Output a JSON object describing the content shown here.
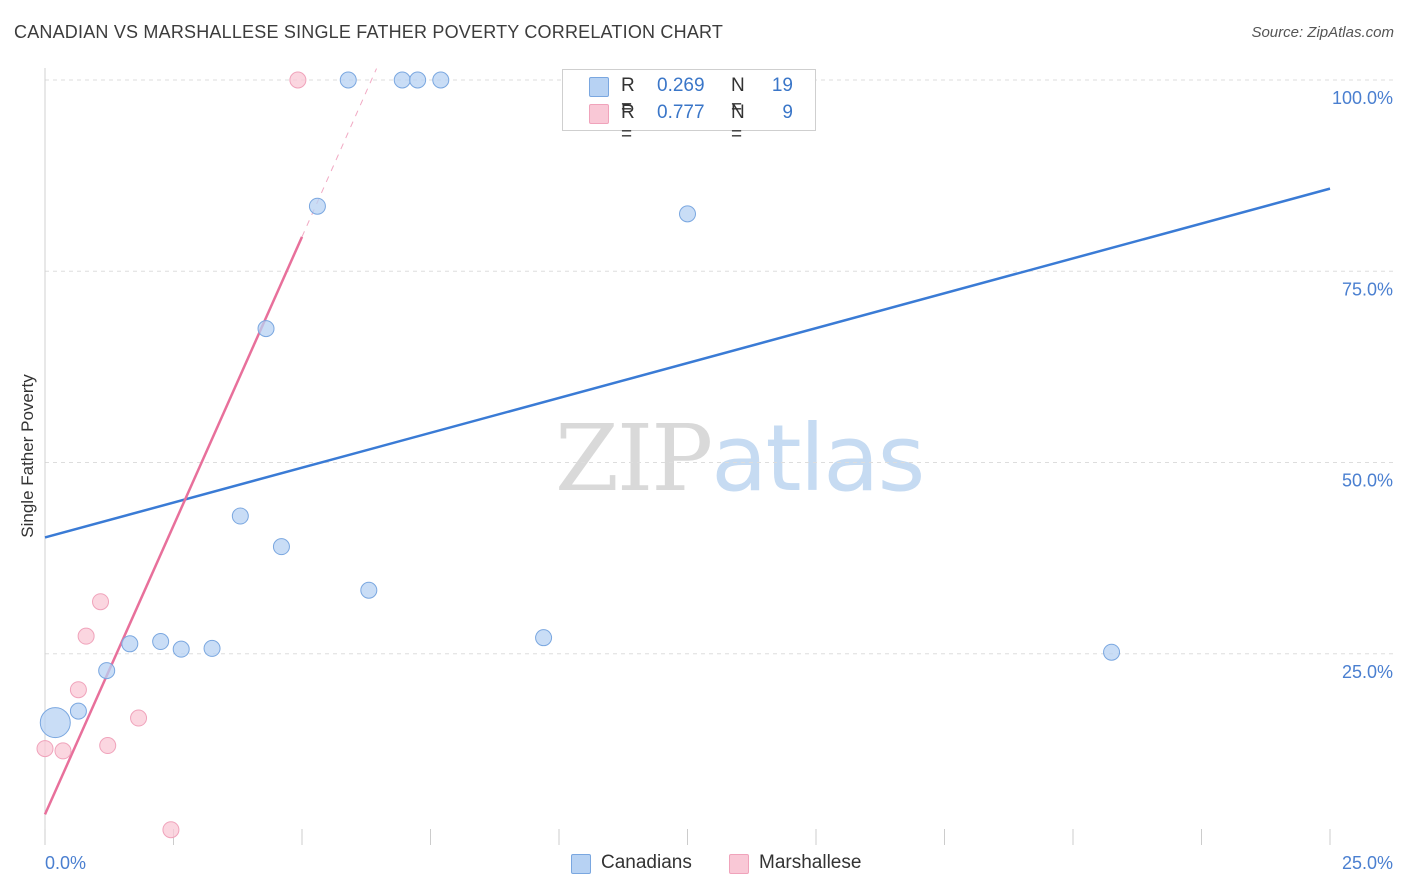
{
  "header": {
    "title": "CANADIAN VS MARSHALLESE SINGLE FATHER POVERTY CORRELATION CHART",
    "source": "Source: ZipAtlas.com"
  },
  "watermark": {
    "zip": "ZIP",
    "atlas": "atlas"
  },
  "legend": {
    "canadians": {
      "r_label": "R =",
      "r_value": "0.269",
      "n_label": "N =",
      "n_value": "19"
    },
    "marshallese": {
      "r_label": "R =",
      "r_value": "0.777",
      "n_label": "N =",
      "n_value": "9"
    }
  },
  "bottom_legend": {
    "canadians": "Canadians",
    "marshallese": "Marshallese"
  },
  "colors": {
    "canadians_fill": "#b7d2f3",
    "canadians_stroke": "#7aa7e0",
    "canadians_line": "#3a7bd5",
    "marshallese_fill": "#f9c8d6",
    "marshallese_stroke": "#f0a3bb",
    "marshallese_line": "#e8709b",
    "tick_label": "#4a7fd0",
    "grid": "#dddddd"
  },
  "chart_data": {
    "type": "scatter",
    "title": "CANADIAN VS MARSHALLESE SINGLE FATHER POVERTY CORRELATION CHART",
    "xlabel": "",
    "ylabel": "Single Father Poverty",
    "xlim": [
      0,
      25
    ],
    "ylim": [
      0,
      100
    ],
    "x_tick_labels": [
      "0.0%",
      "25.0%"
    ],
    "y_ticks": [
      25,
      50,
      75,
      100
    ],
    "y_tick_labels": [
      "25.0%",
      "50.0%",
      "75.0%",
      "100.0%"
    ],
    "series": [
      {
        "name": "Canadians",
        "points": [
          {
            "x": 0.2,
            "y": 16.0,
            "size": 4
          },
          {
            "x": 0.65,
            "y": 17.5,
            "size": 1
          },
          {
            "x": 1.2,
            "y": 22.8,
            "size": 1
          },
          {
            "x": 1.65,
            "y": 26.3,
            "size": 1
          },
          {
            "x": 2.25,
            "y": 26.6,
            "size": 1
          },
          {
            "x": 2.65,
            "y": 25.6,
            "size": 1
          },
          {
            "x": 3.25,
            "y": 25.7,
            "size": 1
          },
          {
            "x": 3.8,
            "y": 43.0,
            "size": 1
          },
          {
            "x": 4.3,
            "y": 67.5,
            "size": 1
          },
          {
            "x": 4.6,
            "y": 39.0,
            "size": 1
          },
          {
            "x": 5.3,
            "y": 83.5,
            "size": 1
          },
          {
            "x": 5.9,
            "y": 100.0,
            "size": 1
          },
          {
            "x": 6.3,
            "y": 33.3,
            "size": 1
          },
          {
            "x": 6.95,
            "y": 100.0,
            "size": 1
          },
          {
            "x": 7.25,
            "y": 100.0,
            "size": 1
          },
          {
            "x": 7.7,
            "y": 100.0,
            "size": 1
          },
          {
            "x": 9.7,
            "y": 27.1,
            "size": 1
          },
          {
            "x": 12.5,
            "y": 82.5,
            "size": 1
          },
          {
            "x": 20.75,
            "y": 25.2,
            "size": 1
          }
        ],
        "trendline": {
          "x": [
            0,
            25
          ],
          "y": [
            40.2,
            85.8
          ]
        }
      },
      {
        "name": "Marshallese",
        "points": [
          {
            "x": 0.0,
            "y": 12.6,
            "size": 1
          },
          {
            "x": 0.35,
            "y": 12.3,
            "size": 1
          },
          {
            "x": 0.65,
            "y": 20.3,
            "size": 1
          },
          {
            "x": 0.8,
            "y": 27.3,
            "size": 1
          },
          {
            "x": 1.08,
            "y": 31.8,
            "size": 1
          },
          {
            "x": 1.22,
            "y": 13.0,
            "size": 1
          },
          {
            "x": 1.82,
            "y": 16.6,
            "size": 1
          },
          {
            "x": 2.45,
            "y": 2.0,
            "size": 1
          },
          {
            "x": 4.92,
            "y": 100.0,
            "size": 1
          }
        ],
        "trendline": {
          "x": [
            0,
            5.0
          ],
          "y": [
            4.0,
            79.5
          ]
        },
        "trendline_extension": {
          "x": [
            5.0,
            6.45
          ],
          "y": [
            79.5,
            101.5
          ]
        }
      }
    ]
  }
}
